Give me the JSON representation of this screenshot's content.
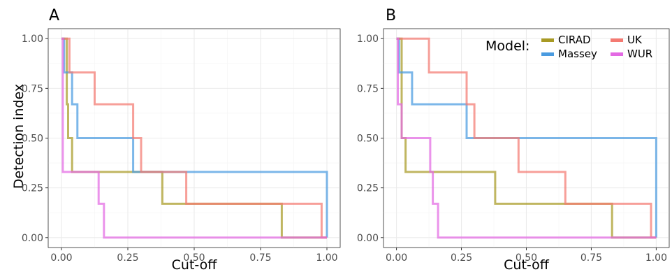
{
  "figure": {
    "ylabel": "Detection index",
    "xlabel": "Cut-off",
    "legend": {
      "title": "Model:",
      "placement": "top-right of panel B",
      "entries": [
        {
          "name": "CIRAD",
          "color": "#a89a24"
        },
        {
          "name": "Massey",
          "color": "#4a9be0"
        },
        {
          "name": "UK",
          "color": "#f47a72"
        },
        {
          "name": "WUR",
          "color": "#e36ae3"
        }
      ]
    }
  },
  "chart_data": [
    {
      "type": "line",
      "panel": "A",
      "title": "A",
      "xlabel": "Cut-off",
      "ylabel": "Detection index",
      "xlim": [
        0,
        1
      ],
      "ylim": [
        0,
        1
      ],
      "x_ticks": [
        "0.00",
        "0.25",
        "0.50",
        "0.75",
        "1.00"
      ],
      "y_ticks": [
        "0.00",
        "0.25",
        "0.50",
        "0.75",
        "1.00"
      ],
      "grid": true,
      "step": true,
      "series": [
        {
          "name": "CIRAD",
          "color": "#a89a24",
          "points": [
            [
              0,
              1
            ],
            [
              0.02,
              1
            ],
            [
              0.02,
              0.67
            ],
            [
              0.025,
              0.67
            ],
            [
              0.025,
              0.5
            ],
            [
              0.04,
              0.5
            ],
            [
              0.04,
              0.33
            ],
            [
              0.38,
              0.33
            ],
            [
              0.38,
              0.17
            ],
            [
              0.83,
              0.17
            ],
            [
              0.83,
              0
            ],
            [
              1,
              0
            ]
          ]
        },
        {
          "name": "Massey",
          "color": "#4a9be0",
          "points": [
            [
              0,
              1
            ],
            [
              0.01,
              1
            ],
            [
              0.01,
              0.83
            ],
            [
              0.04,
              0.83
            ],
            [
              0.04,
              0.67
            ],
            [
              0.06,
              0.67
            ],
            [
              0.06,
              0.5
            ],
            [
              0.27,
              0.5
            ],
            [
              0.27,
              0.33
            ],
            [
              1,
              0.33
            ],
            [
              1,
              0
            ]
          ]
        },
        {
          "name": "UK",
          "color": "#f47a72",
          "points": [
            [
              0,
              1
            ],
            [
              0.03,
              1
            ],
            [
              0.03,
              0.83
            ],
            [
              0.125,
              0.83
            ],
            [
              0.125,
              0.67
            ],
            [
              0.27,
              0.67
            ],
            [
              0.27,
              0.5
            ],
            [
              0.3,
              0.5
            ],
            [
              0.3,
              0.33
            ],
            [
              0.47,
              0.33
            ],
            [
              0.47,
              0.17
            ],
            [
              0.98,
              0.17
            ],
            [
              0.98,
              0
            ],
            [
              1,
              0
            ]
          ]
        },
        {
          "name": "WUR",
          "color": "#e36ae3",
          "points": [
            [
              0,
              1
            ],
            [
              0.005,
              1
            ],
            [
              0.005,
              0.33
            ],
            [
              0.14,
              0.33
            ],
            [
              0.14,
              0.17
            ],
            [
              0.16,
              0.17
            ],
            [
              0.16,
              0
            ],
            [
              1,
              0
            ]
          ]
        }
      ]
    },
    {
      "type": "line",
      "panel": "B",
      "title": "B",
      "xlabel": "Cut-off",
      "ylabel": "",
      "xlim": [
        0,
        1
      ],
      "ylim": [
        0,
        1
      ],
      "x_ticks": [
        "0.00",
        "0.25",
        "0.50",
        "0.75",
        "1.00"
      ],
      "y_ticks": [
        "0.00",
        "0.25",
        "0.50",
        "0.75",
        "1.00"
      ],
      "grid": true,
      "step": true,
      "series": [
        {
          "name": "CIRAD",
          "color": "#a89a24",
          "points": [
            [
              0,
              1
            ],
            [
              0.02,
              1
            ],
            [
              0.02,
              0.5
            ],
            [
              0.035,
              0.5
            ],
            [
              0.035,
              0.33
            ],
            [
              0.38,
              0.33
            ],
            [
              0.38,
              0.17
            ],
            [
              0.83,
              0.17
            ],
            [
              0.83,
              0
            ],
            [
              1,
              0
            ]
          ]
        },
        {
          "name": "Massey",
          "color": "#4a9be0",
          "points": [
            [
              0,
              1
            ],
            [
              0.01,
              1
            ],
            [
              0.01,
              0.83
            ],
            [
              0.06,
              0.83
            ],
            [
              0.06,
              0.67
            ],
            [
              0.27,
              0.67
            ],
            [
              0.27,
              0.5
            ],
            [
              1,
              0.5
            ],
            [
              1,
              0
            ]
          ]
        },
        {
          "name": "UK",
          "color": "#f47a72",
          "points": [
            [
              0,
              1
            ],
            [
              0.03,
              1
            ],
            [
              0.03,
              1
            ],
            [
              0.125,
              1
            ],
            [
              0.125,
              0.83
            ],
            [
              0.27,
              0.83
            ],
            [
              0.27,
              0.67
            ],
            [
              0.3,
              0.67
            ],
            [
              0.3,
              0.5
            ],
            [
              0.47,
              0.5
            ],
            [
              0.47,
              0.33
            ],
            [
              0.65,
              0.33
            ],
            [
              0.65,
              0.17
            ],
            [
              0.98,
              0.17
            ],
            [
              0.98,
              0
            ],
            [
              1,
              0
            ]
          ]
        },
        {
          "name": "WUR",
          "color": "#e36ae3",
          "points": [
            [
              0,
              1
            ],
            [
              0.005,
              1
            ],
            [
              0.005,
              0.67
            ],
            [
              0.02,
              0.67
            ],
            [
              0.02,
              0.5
            ],
            [
              0.13,
              0.5
            ],
            [
              0.13,
              0.33
            ],
            [
              0.14,
              0.33
            ],
            [
              0.14,
              0.17
            ],
            [
              0.16,
              0.17
            ],
            [
              0.16,
              0
            ],
            [
              1,
              0
            ]
          ]
        }
      ]
    }
  ]
}
